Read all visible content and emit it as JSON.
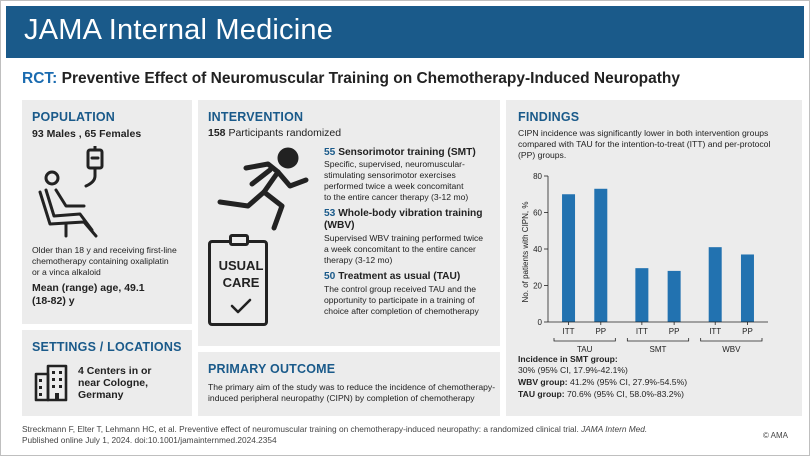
{
  "header": {
    "journal": "JAMA Internal Medicine"
  },
  "title": {
    "prefix": "RCT:",
    "text": "Preventive Effect of Neuromuscular Training on Chemotherapy-Induced Neuropathy"
  },
  "population": {
    "heading": "POPULATION",
    "counts": "93 Males , 65 Females",
    "desc1": "Older than 18 y and receiving first-line",
    "desc2": "chemotherapy containing oxaliplatin",
    "desc3": "or a vinca alkaloid",
    "age1": "Mean (range) age, 49.1",
    "age2": "(18-82) y"
  },
  "settings": {
    "heading": "SETTINGS / LOCATIONS",
    "l1": "4 Centers in or",
    "l2": "near Cologne,",
    "l3": "Germany"
  },
  "intervention": {
    "heading": "INTERVENTION",
    "randomized_n": "158",
    "randomized_label": "Participants randomized",
    "smt_n": "55",
    "smt_title": "Sensorimotor training (SMT)",
    "smt_d1": "Specific, supervised, neuromuscular-",
    "smt_d2": "stimulating sensorimotor exercises",
    "smt_d3": "performed twice a week concomitant",
    "smt_d4": "to the entire cancer therapy (3-12 mo)",
    "wbv_n": "53",
    "wbv_title1": "Whole-body vibration training",
    "wbv_title2": "(WBV)",
    "wbv_d1": "Supervised WBV training performed twice",
    "wbv_d2": "a week concomitant to the entire cancer",
    "wbv_d3": "therapy (3-12 mo)",
    "tau_n": "50",
    "tau_title": "Treatment as usual  (TAU)",
    "tau_d1": "The control group received TAU and the",
    "tau_d2": "opportunity to participate in a training of",
    "tau_d3": "choice after completion of chemotherapy",
    "care_l1": "USUAL",
    "care_l2": "CARE"
  },
  "primary": {
    "heading": "PRIMARY OUTCOME",
    "d1": "The primary aim of the study was to reduce the incidence  of chemotherapy-",
    "d2": "induced peripheral neuropathy (CIPN) by completion of chemotherapy"
  },
  "findings": {
    "heading": "FINDINGS",
    "d1": "CIPN incidence was significantly lower in both intervention groups",
    "d2": "compared with TAU for the intention-to-treat (ITT) and per-protocol",
    "d3": "(PP) groups.",
    "smt_label": "Incidence in SMT group:",
    "smt_val": "30% (95% CI, 17.9%-42.1%)",
    "wbv_label": "WBV group:",
    "wbv_val": "41.2% (95% CI, 27.9%-54.5%)",
    "tau_label": "TAU group:",
    "tau_val": "70.6% (95% CI, 58.0%-83.2%)"
  },
  "chart_data": {
    "type": "bar",
    "ylabel": "No. of patients with CIPN, %",
    "ylim": [
      0,
      80
    ],
    "yticks": [
      0,
      20,
      40,
      60,
      80
    ],
    "bar_color": "#2272b0",
    "groups": [
      {
        "name": "TAU",
        "categories": [
          "ITT",
          "PP"
        ],
        "values": [
          70,
          73
        ]
      },
      {
        "name": "SMT",
        "categories": [
          "ITT",
          "PP"
        ],
        "values": [
          29.5,
          28
        ]
      },
      {
        "name": "WBV",
        "categories": [
          "ITT",
          "PP"
        ],
        "values": [
          41,
          37
        ]
      }
    ]
  },
  "footer": {
    "l1": "Streckmann F, Elter T, Lehmann HC, et al. Preventive effect of neuromuscular training on chemotherapy-induced neuropathy: a randomized clinical trial.",
    "journal": "JAMA Intern Med.",
    "l2": "Published online July 1, 2024. doi:10.1001/jamainternmed.2024.2354",
    "copyright": "© AMA"
  },
  "colors": {
    "header": "#1a5a8a",
    "accent": "#1a6bb0",
    "panel": "#ececec"
  }
}
